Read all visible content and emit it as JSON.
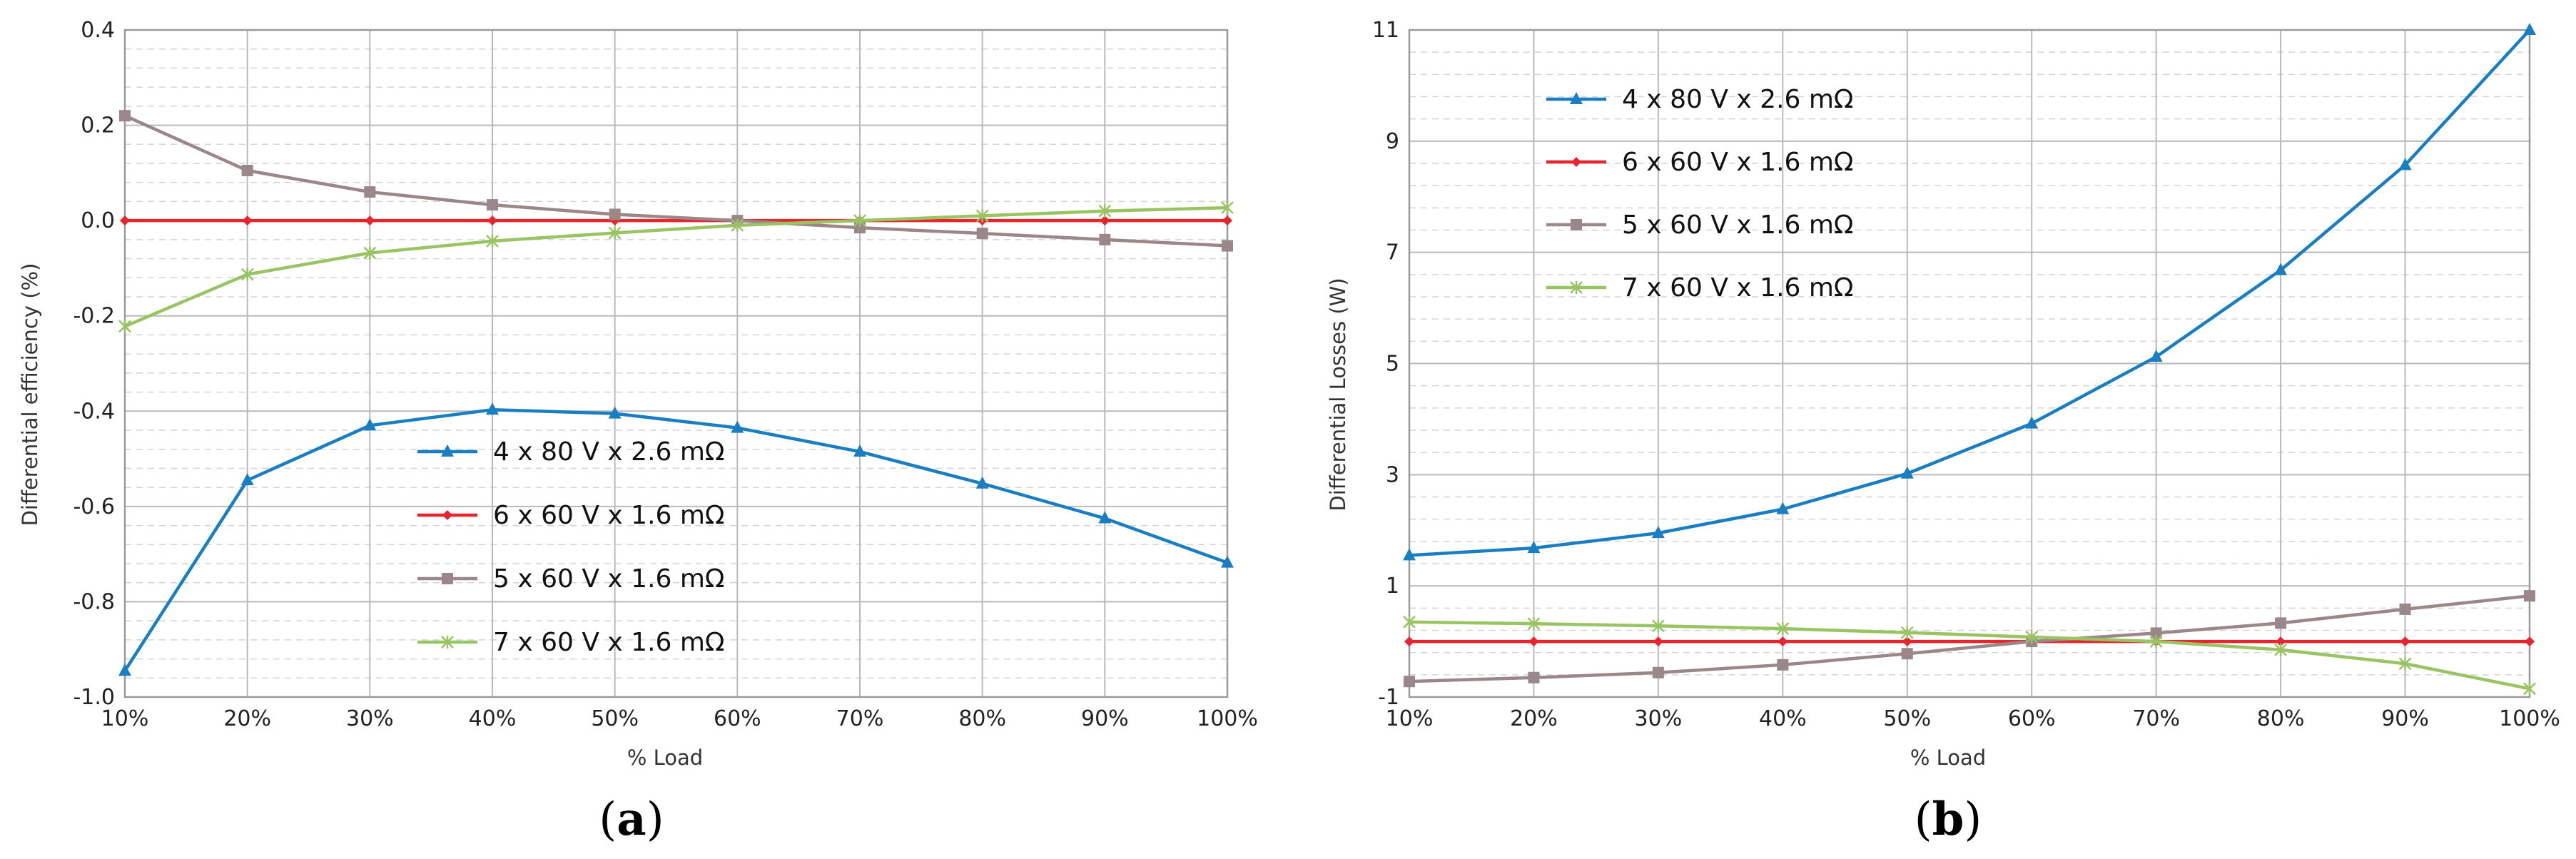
{
  "chart_data": [
    {
      "type": "line",
      "panel_label": "a",
      "x": [
        "10%",
        "20%",
        "30%",
        "40%",
        "50%",
        "60%",
        "70%",
        "80%",
        "90%",
        "100%"
      ],
      "xlabel": "% Load",
      "ylabel": "Differential efficiency (%)",
      "ylim": [
        -1.0,
        0.4
      ],
      "yticks": [
        "-1.0",
        "-0.8",
        "-0.6",
        "-0.4",
        "-0.2",
        "0.0",
        "0.2",
        "0.4"
      ],
      "legend_position": "center-bottom",
      "series": [
        {
          "name": "4 x 80 V x 2.6 mΩ",
          "color": "#1a7ec2",
          "marker": "triangle",
          "values": [
            -0.945,
            -0.545,
            -0.43,
            -0.397,
            -0.405,
            -0.435,
            -0.485,
            -0.552,
            -0.625,
            -0.718
          ]
        },
        {
          "name": "6 x 60 V x 1.6 mΩ",
          "color": "#e8242d",
          "marker": "diamond",
          "values": [
            0,
            0,
            0,
            0,
            0,
            0,
            0,
            0,
            0,
            0
          ]
        },
        {
          "name": "5 x 60 V x 1.6 mΩ",
          "color": "#9b8688",
          "marker": "square",
          "values": [
            0.22,
            0.105,
            0.06,
            0.033,
            0.013,
            0.0,
            -0.015,
            -0.027,
            -0.04,
            -0.053
          ]
        },
        {
          "name": "7 x 60 V x 1.6 mΩ",
          "color": "#98c463",
          "marker": "star",
          "values": [
            -0.222,
            -0.113,
            -0.068,
            -0.043,
            -0.026,
            -0.01,
            0.0,
            0.01,
            0.02,
            0.027
          ]
        }
      ]
    },
    {
      "type": "line",
      "panel_label": "b",
      "x": [
        "10%",
        "20%",
        "30%",
        "40%",
        "50%",
        "60%",
        "70%",
        "80%",
        "90%",
        "100%"
      ],
      "xlabel": "% Load",
      "ylabel": "Differential Losses (W)",
      "ylim": [
        -1,
        11
      ],
      "yticks": [
        "-1",
        "1",
        "3",
        "5",
        "7",
        "9",
        "11"
      ],
      "legend_position": "top-left",
      "series": [
        {
          "name": "4 x 80 V x 2.6 mΩ",
          "color": "#1a7ec2",
          "marker": "triangle",
          "values": [
            1.55,
            1.68,
            1.95,
            2.38,
            3.02,
            3.92,
            5.12,
            6.68,
            8.57,
            11.0
          ]
        },
        {
          "name": "6 x 60 V x 1.6 mΩ",
          "color": "#e8242d",
          "marker": "diamond",
          "values": [
            0,
            0,
            0,
            0,
            0,
            0,
            0,
            0,
            0,
            0
          ]
        },
        {
          "name": "5 x 60 V x 1.6 mΩ",
          "color": "#9b8688",
          "marker": "square",
          "values": [
            -0.72,
            -0.65,
            -0.56,
            -0.42,
            -0.22,
            0.0,
            0.15,
            0.33,
            0.58,
            0.82
          ]
        },
        {
          "name": "7 x 60 V x 1.6 mΩ",
          "color": "#98c463",
          "marker": "star",
          "values": [
            0.35,
            0.32,
            0.28,
            0.23,
            0.16,
            0.08,
            0.0,
            -0.15,
            -0.4,
            -0.85
          ]
        }
      ]
    }
  ]
}
